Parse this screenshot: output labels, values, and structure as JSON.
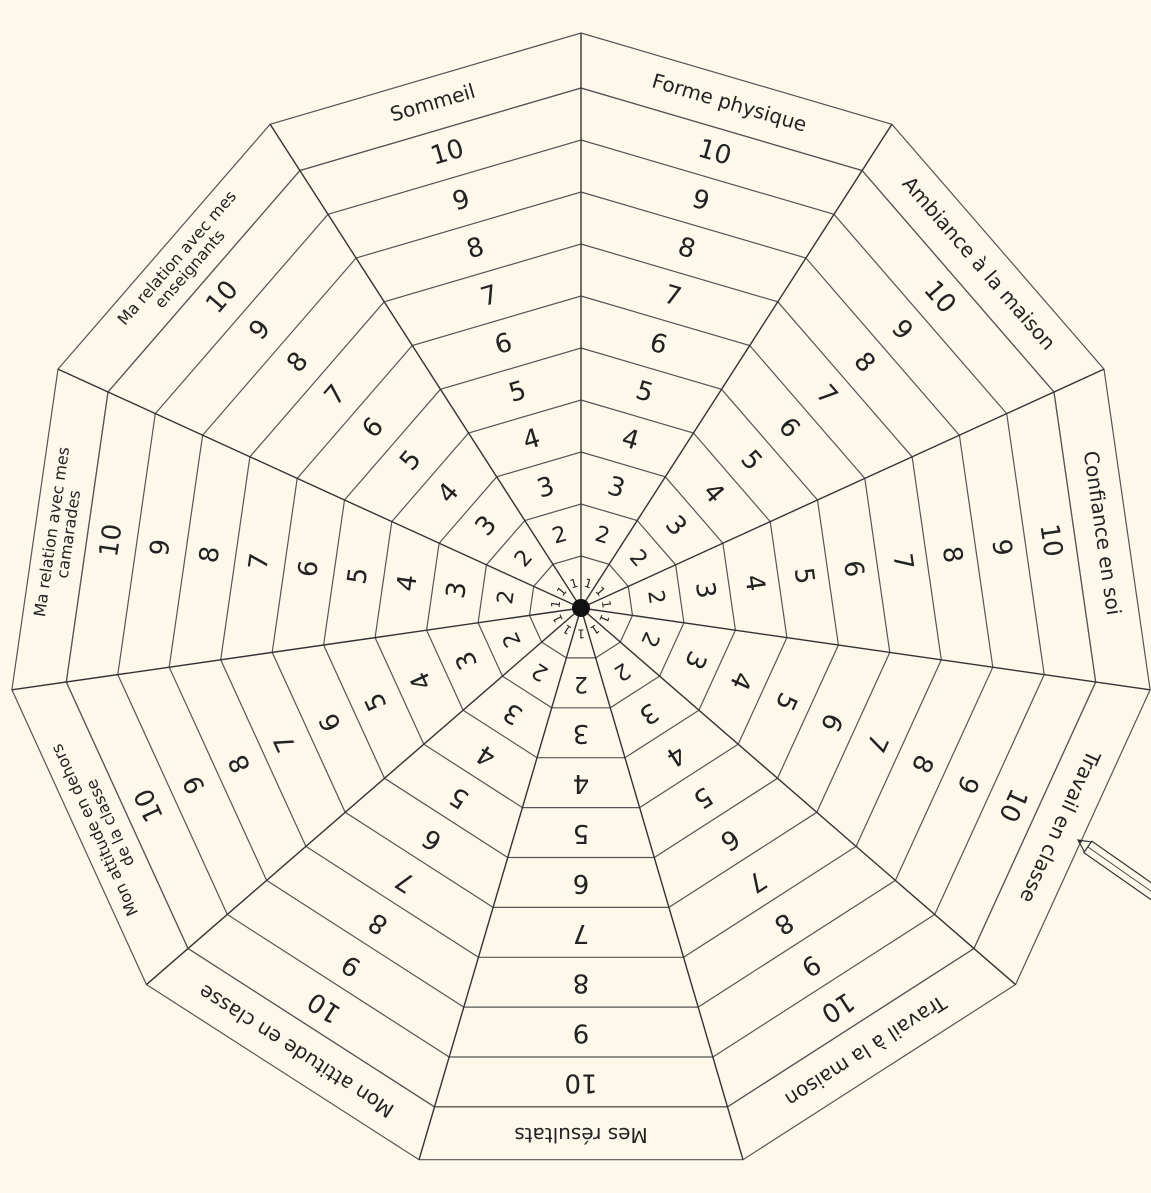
{
  "sectors": [
    {
      "lines": [
        "Forme physique"
      ]
    },
    {
      "lines": [
        "Ambiance à la maison"
      ]
    },
    {
      "lines": [
        "Confiance en soi"
      ]
    },
    {
      "lines": [
        "Travail en classe"
      ]
    },
    {
      "lines": [
        "Travail à la maison"
      ]
    },
    {
      "lines": [
        "Mes résultats"
      ]
    },
    {
      "lines": [
        "Mon attitude en classe"
      ]
    },
    {
      "lines": [
        "Mon attitude en dehors",
        "de la classe"
      ]
    },
    {
      "lines": [
        "Ma relation avec mes",
        "camarades"
      ]
    },
    {
      "lines": [
        "Ma relation avec mes",
        "enseignants"
      ]
    },
    {
      "lines": [
        "Sommeil"
      ]
    }
  ],
  "scale": [
    1,
    2,
    3,
    4,
    5,
    6,
    7,
    8,
    9,
    10
  ]
}
